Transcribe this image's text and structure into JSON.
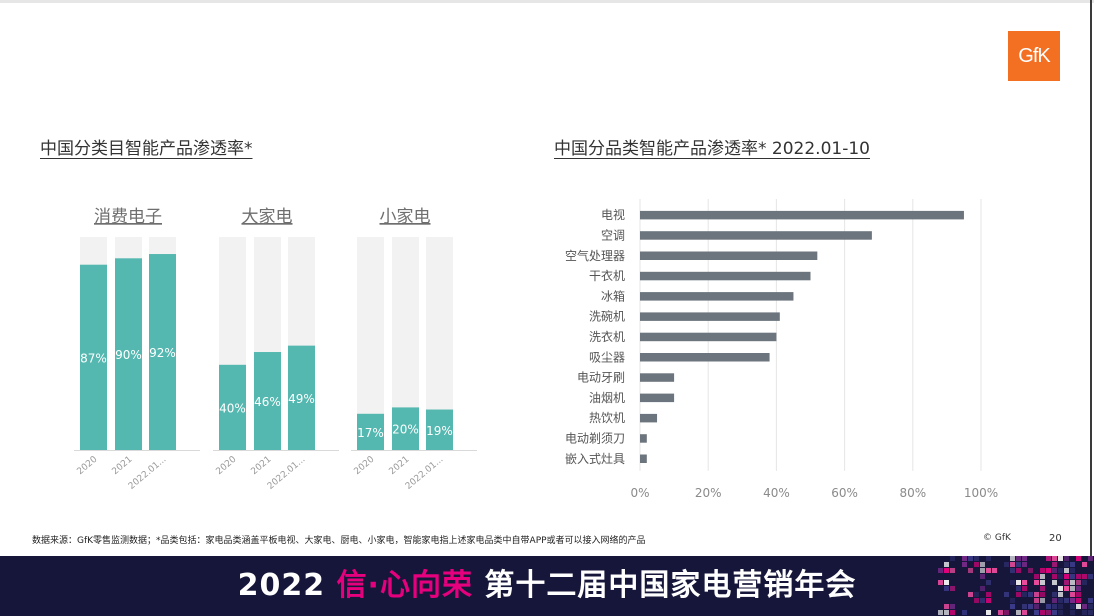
{
  "logo": "GfK",
  "left_section": {
    "title": "中国分类目智能产品渗透率*",
    "groups": [
      {
        "name": "消费电子",
        "categories": [
          "2020",
          "2021",
          "2022.01..."
        ],
        "values": [
          87,
          90,
          92
        ],
        "labels": [
          "87%",
          "90%",
          "92%"
        ]
      },
      {
        "name": "大家电",
        "categories": [
          "2020",
          "2021",
          "2022.01..."
        ],
        "values": [
          40,
          46,
          49
        ],
        "labels": [
          "40%",
          "46%",
          "49%"
        ]
      },
      {
        "name": "小家电",
        "categories": [
          "2020",
          "2021",
          "2022.01..."
        ],
        "values": [
          17,
          20,
          19
        ],
        "labels": [
          "17%",
          "20%",
          "19%"
        ]
      }
    ]
  },
  "right_section": {
    "title": "中国分品类智能产品渗透率* 2022.01-10"
  },
  "chart_data": [
    {
      "type": "bar",
      "orientation": "vertical",
      "title": "中国分类目智能产品渗透率*",
      "groups": [
        "消费电子",
        "大家电",
        "小家电"
      ],
      "categories": [
        "2020",
        "2021",
        "2022.01..."
      ],
      "series": [
        {
          "name": "消费电子",
          "values": [
            87,
            90,
            92
          ]
        },
        {
          "name": "大家电",
          "values": [
            40,
            46,
            49
          ]
        },
        {
          "name": "小家电",
          "values": [
            17,
            20,
            19
          ]
        }
      ],
      "ylim": [
        0,
        100
      ],
      "unit": "%",
      "bar_color": "#55b8b0",
      "background_color": "#f2f2f2"
    },
    {
      "type": "bar",
      "orientation": "horizontal",
      "title": "中国分品类智能产品渗透率* 2022.01-10",
      "categories": [
        "电视",
        "空调",
        "空气处理器",
        "干衣机",
        "冰箱",
        "洗碗机",
        "洗衣机",
        "吸尘器",
        "电动牙刷",
        "油烟机",
        "热饮机",
        "电动剃须刀",
        "嵌入式灶具"
      ],
      "values": [
        95,
        68,
        52,
        50,
        45,
        41,
        40,
        38,
        10,
        10,
        5,
        2,
        2
      ],
      "xlim": [
        0,
        100
      ],
      "ticks": [
        "0%",
        "20%",
        "40%",
        "60%",
        "80%",
        "100%"
      ],
      "grid": true,
      "bar_color": "#6c757d"
    }
  ],
  "footer": {
    "note": "数据来源：GfK零售监测数据；*品类包括：家电品类涵盖平板电视、大家电、厨电、小家电，智能家电指上述家电品类中自带APP或者可以接入网络的产品",
    "copyright": "© GfK",
    "page": "20"
  },
  "banner": {
    "year": "2022 ",
    "slogan": "信·心向荣",
    "event": " 第十二届中国家电营销年会"
  }
}
